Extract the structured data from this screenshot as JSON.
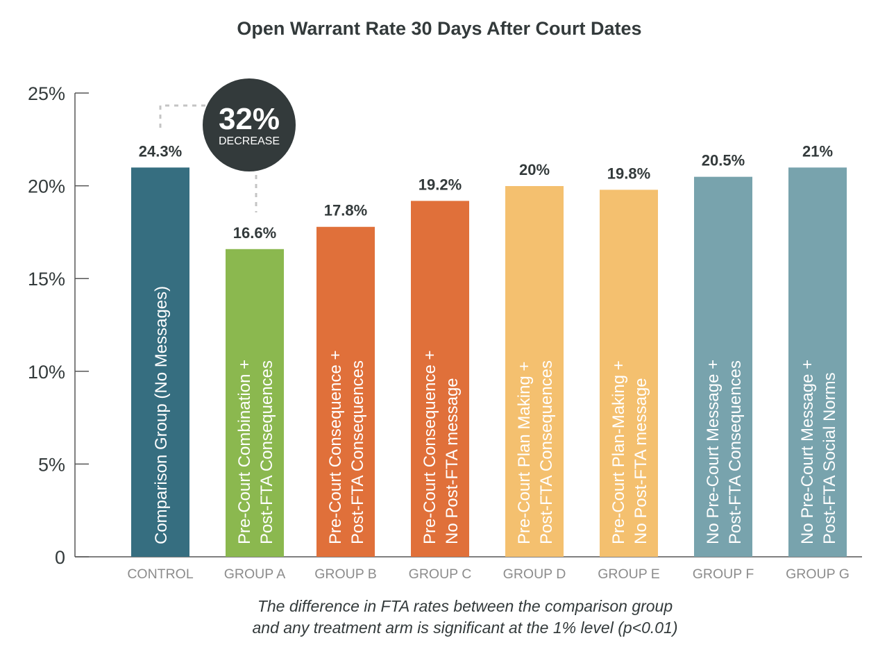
{
  "chart_data": {
    "type": "bar",
    "title": "Open Warrant Rate 30 Days After Court Dates",
    "xlabel": "",
    "ylabel": "",
    "ylim": [
      0,
      25
    ],
    "yticks": [
      {
        "value": 0,
        "label": "0"
      },
      {
        "value": 5,
        "label": "5%"
      },
      {
        "value": 10,
        "label": "10%"
      },
      {
        "value": 15,
        "label": "15%"
      },
      {
        "value": 20,
        "label": "20%"
      },
      {
        "value": 25,
        "label": "25%"
      }
    ],
    "grid": false,
    "categories": [
      "CONTROL",
      "GROUP A",
      "GROUP B",
      "GROUP C",
      "GROUP D",
      "GROUP E",
      "GROUP F",
      "GROUP G"
    ],
    "values": [
      24.3,
      16.6,
      17.8,
      19.2,
      20,
      19.8,
      20.5,
      21
    ],
    "value_labels": [
      "24.3%",
      "16.6%",
      "17.8%",
      "19.2%",
      "20%",
      "19.8%",
      "20.5%",
      "21%"
    ],
    "bar_labels": [
      [
        "Comparison Group (No Messages)"
      ],
      [
        "Pre-Court Combination +",
        "Post-FTA Consequences"
      ],
      [
        "Pre-Court Consequence +",
        "Post-FTA Consequences"
      ],
      [
        "Pre-Court Consequence +",
        "No Post-FTA message"
      ],
      [
        "Pre-Court Plan Making +",
        "Post-FTA Consequences"
      ],
      [
        "Pre-Court Plan-Making +",
        "No Post-FTA message"
      ],
      [
        "No Pre-Court Message  +",
        "Post-FTA Consequences"
      ],
      [
        "No Pre-Court Message  +",
        "Post-FTA Social Norms"
      ]
    ],
    "bar_colors": [
      "#366e80",
      "#8bb84f",
      "#e0703a",
      "#e0703a",
      "#f4c06f",
      "#f4c06f",
      "#78a3ad",
      "#78a3ad"
    ],
    "annotation": {
      "value": "32%",
      "label": "DECREASE",
      "color": "#333a3b"
    },
    "footnote": [
      "The difference in FTA rates between the comparison group",
      "and any treatment arm is significant at the 1% level (p<0.01)"
    ]
  }
}
